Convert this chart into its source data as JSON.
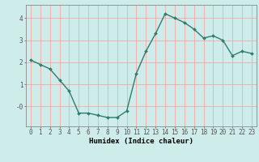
{
  "x": [
    0,
    1,
    2,
    3,
    4,
    5,
    6,
    7,
    8,
    9,
    10,
    11,
    12,
    13,
    14,
    15,
    16,
    17,
    18,
    19,
    20,
    21,
    22,
    23
  ],
  "y": [
    2.1,
    1.9,
    1.7,
    1.2,
    0.7,
    -0.3,
    -0.3,
    -0.4,
    -0.5,
    -0.5,
    -0.2,
    1.5,
    2.5,
    3.3,
    4.2,
    4.0,
    3.8,
    3.5,
    3.1,
    3.2,
    3.0,
    2.3,
    2.5,
    2.4
  ],
  "line_color": "#2e7d6e",
  "marker": "D",
  "markersize": 2.0,
  "linewidth": 1.0,
  "bg_color": "#ceecea",
  "grid_color": "#ff9999",
  "axis_color": "#555555",
  "xlabel": "Humidex (Indice chaleur)",
  "xlabel_fontsize": 6.5,
  "tick_fontsize": 5.5,
  "ylim": [
    -0.9,
    4.6
  ],
  "yticks": [
    0,
    1,
    2,
    3,
    4
  ],
  "ytick_labels": [
    "-0",
    "1",
    "2",
    "3",
    "4"
  ],
  "xlim": [
    -0.5,
    23.5
  ],
  "xticks": [
    0,
    1,
    2,
    3,
    4,
    5,
    6,
    7,
    8,
    9,
    10,
    11,
    12,
    13,
    14,
    15,
    16,
    17,
    18,
    19,
    20,
    21,
    22,
    23
  ]
}
